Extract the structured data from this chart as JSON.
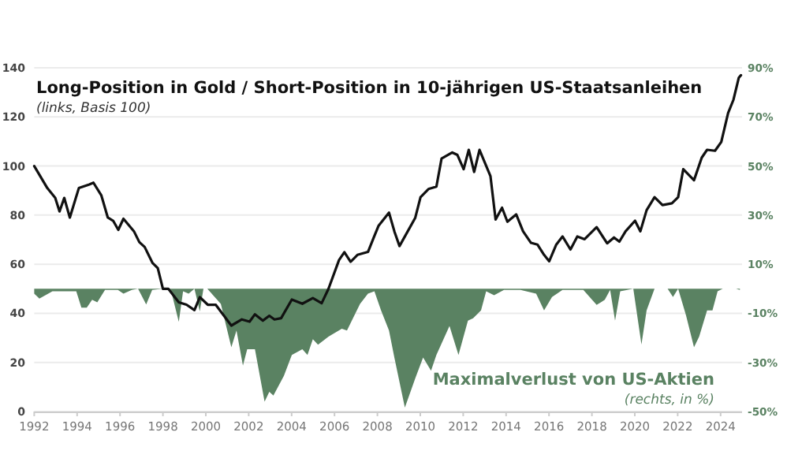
{
  "chart_data": {
    "type": "line",
    "title": "Long-Position in Gold / Short-Position in 10-jährigen US-Staatsanleihen",
    "subtitle": "(links, Basis 100)",
    "annotations": [
      "Maximalverlust von US-Aktien",
      "(rechts, in %)"
    ],
    "xlim": [
      1992,
      2025
    ],
    "xticks": [
      1992,
      1994,
      1996,
      1998,
      2000,
      2002,
      2004,
      2006,
      2008,
      2010,
      2012,
      2014,
      2016,
      2018,
      2020,
      2022,
      2024
    ],
    "ylim": [
      0,
      140
    ],
    "yticks": [
      0,
      20,
      40,
      60,
      80,
      100,
      120,
      140
    ],
    "y2lim": [
      -50,
      90
    ],
    "y2ticks": [
      {
        "value": -50,
        "label": "-50%"
      },
      {
        "value": -30,
        "label": "-30%"
      },
      {
        "value": -10,
        "label": "-10%"
      },
      {
        "value": 10,
        "label": "10%"
      },
      {
        "value": 30,
        "label": "30%"
      },
      {
        "value": 50,
        "label": "50%"
      },
      {
        "value": 70,
        "label": "70%"
      },
      {
        "value": 90,
        "label": "90%"
      }
    ],
    "grid": "y",
    "series": [
      {
        "type": "area",
        "axis": "y2",
        "color": "#5a8262",
        "x": [
          1992,
          1992.24,
          1992.85,
          1993.96,
          1994.2,
          1994.45,
          1994.7,
          1994.94,
          1995.3,
          1995.9,
          1996.16,
          1996.55,
          1996.84,
          1997.22,
          1997.5,
          1998,
          1998.37,
          1998.74,
          1998.94,
          1999.2,
          1999.47,
          1999.72,
          1999.89,
          2000.07,
          2000.7,
          2001.19,
          2001.43,
          2001.73,
          2001.93,
          2002.29,
          2002.74,
          2002.96,
          2003.15,
          2003.64,
          2004.01,
          2004.5,
          2004.74,
          2004.99,
          2005.23,
          2005.72,
          2006.34,
          2006.58,
          2007.19,
          2007.56,
          2007.86,
          2008.17,
          2008.54,
          2008.79,
          2009.28,
          2009.76,
          2010.13,
          2010.5,
          2010.75,
          2011.36,
          2011.78,
          2012.22,
          2012.46,
          2012.83,
          2013.07,
          2013.44,
          2013.9,
          2014.67,
          2015.4,
          2015.77,
          2016.14,
          2016.63,
          2017.6,
          2018.22,
          2018.6,
          2018.85,
          2019.08,
          2019.32,
          2019.93,
          2020.31,
          2020.55,
          2020.92,
          2021.53,
          2021.78,
          2022.02,
          2022.39,
          2022.76,
          2023,
          2023.37,
          2023.62,
          2023.86,
          2024.1,
          2024.72,
          2024.9
        ],
        "values": [
          -2,
          -4,
          -1,
          -1,
          -7.7,
          -7.7,
          -4.5,
          -5.5,
          -0.5,
          -0.5,
          -2,
          -0.5,
          0,
          -6.4,
          -0.5,
          0,
          -0.5,
          -13.5,
          -1,
          -2,
          0,
          -9.2,
          0,
          0,
          -6.2,
          -23.8,
          -17,
          -31.3,
          -24.6,
          -24.6,
          -46,
          -42,
          -43.5,
          -35.5,
          -27,
          -24.6,
          -27,
          -20.5,
          -22.8,
          -19.5,
          -16.3,
          -17,
          -6.2,
          -2,
          -1,
          -8.8,
          -17,
          -28,
          -48.4,
          -36.6,
          -28,
          -33.4,
          -27,
          -15.2,
          -27,
          -13,
          -12,
          -8.8,
          -1,
          -2.6,
          -0.5,
          -0.5,
          -2,
          -8.8,
          -3.4,
          -0.5,
          -0.5,
          -6.6,
          -4.5,
          -0.5,
          -13,
          -1,
          0,
          -22.7,
          -8.8,
          0,
          0,
          -3.4,
          0,
          -10.9,
          -23.8,
          -19.5,
          -8.8,
          -8.8,
          -1,
          0,
          0,
          -0.5
        ]
      },
      {
        "color": "#111111",
        "x": [
          1992,
          1992.61,
          1992.98,
          1993.18,
          1993.4,
          1993.66,
          1994.08,
          1994.57,
          1994.76,
          1995.13,
          1995.43,
          1995.68,
          1995.92,
          1996.16,
          1996.65,
          1996.9,
          1997.15,
          1997.51,
          1997.76,
          1998,
          1998.25,
          1998.74,
          1999.1,
          1999.47,
          1999.72,
          2000.09,
          2000.46,
          2001.19,
          2001.68,
          2002.04,
          2002.29,
          2002.66,
          2002.96,
          2003.2,
          2003.51,
          2004.01,
          2004.5,
          2004.99,
          2005.4,
          2005.72,
          2006.21,
          2006.46,
          2006.75,
          2007.07,
          2007.56,
          2007.85,
          2008.05,
          2008.54,
          2008.79,
          2009.03,
          2009.76,
          2010.01,
          2010.38,
          2010.75,
          2010.99,
          2011.49,
          2011.73,
          2012.02,
          2012.26,
          2012.51,
          2012.76,
          2013.27,
          2013.51,
          2013.81,
          2014.06,
          2014.47,
          2014.79,
          2015.16,
          2015.46,
          2015.77,
          2016.01,
          2016.34,
          2016.63,
          2017,
          2017.32,
          2017.66,
          2018.22,
          2018.71,
          2019.03,
          2019.28,
          2019.57,
          2020.01,
          2020.26,
          2020.55,
          2020.92,
          2021.29,
          2021.73,
          2022.02,
          2022.26,
          2022.76,
          2023.12,
          2023.37,
          2023.74,
          2024.03,
          2024.35,
          2024.6,
          2024.85,
          2024.95
        ],
        "values": [
          100,
          91,
          87,
          81.5,
          87,
          79,
          91,
          92.5,
          93.2,
          88,
          79,
          77.7,
          74,
          78.5,
          73.4,
          69,
          67,
          60.6,
          58.4,
          50,
          50,
          44.5,
          43.5,
          41.3,
          46.6,
          43.5,
          43.5,
          35,
          37.5,
          36.6,
          39.6,
          37,
          39,
          37.5,
          38,
          45.6,
          43.9,
          46.2,
          44.1,
          50,
          61.7,
          64.9,
          61,
          63.8,
          65,
          71.3,
          75.6,
          81,
          73.4,
          67.4,
          78.8,
          87.3,
          90.6,
          91.6,
          103,
          105.5,
          104.5,
          98.7,
          106.6,
          97.6,
          106.6,
          95.9,
          78.2,
          83,
          77.3,
          80.3,
          73.4,
          68.7,
          68,
          63.8,
          61.2,
          68,
          71.3,
          66,
          71.3,
          70.2,
          75.1,
          68.5,
          70.9,
          69.2,
          73.4,
          77.7,
          73.4,
          82,
          87.3,
          84.1,
          84.8,
          87.3,
          98.7,
          94.2,
          103.4,
          106.6,
          106.2,
          109.8,
          121.6,
          127,
          136,
          137
        ]
      }
    ]
  }
}
